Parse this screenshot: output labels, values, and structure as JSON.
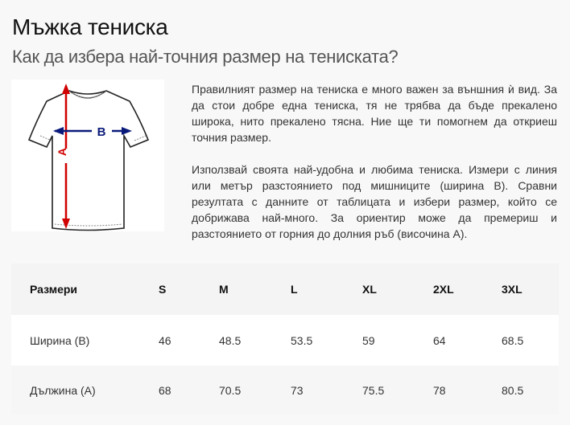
{
  "header": {
    "title": "Мъжка тениска",
    "subtitle": "Как да избера най-точния размер на тениската?"
  },
  "image": {
    "label_a": "A",
    "label_b": "B",
    "arrow_a_color": "#d00000",
    "arrow_b_color": "#0a1a7a"
  },
  "description": {
    "paragraphs": [
      "Правилният размер на тениска е много важен за външния ѝ вид. За да стои добре една тениска, тя не трябва да бъде прекалено широка, нито прекалено тясна. Ние ще ти помогнем да откриеш точния размер.",
      "Използвай своята най-удобна и любима тениска. Измери с линия или метър разстоянието под мишниците (ширина B). Сравни резултата с данните от таблицата и избери размер, който се добрижава най-много. За ориентир може да премериш и разстоянието от горния до долния ръб (височина A)."
    ]
  },
  "table": {
    "headers": [
      "Размери",
      "S",
      "M",
      "L",
      "XL",
      "2XL",
      "3XL"
    ],
    "rows": [
      [
        "Ширина (B)",
        "46",
        "48.5",
        "53.5",
        "59",
        "64",
        "68.5"
      ],
      [
        "Дължина (A)",
        "68",
        "70.5",
        "73",
        "75.5",
        "78",
        "80.5"
      ]
    ]
  }
}
